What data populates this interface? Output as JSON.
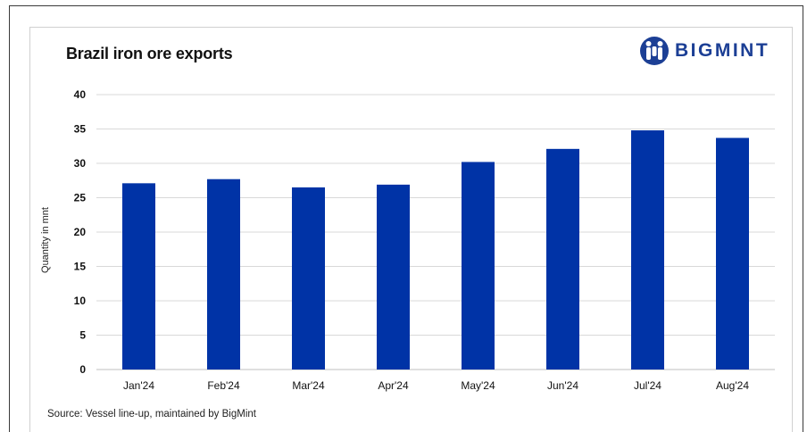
{
  "title": "Brazil iron ore exports",
  "logo_text": "BIGMINT",
  "logo_icon": "bigmint-people-icon",
  "source_text": "Source: Vessel line-up, maintained by BigMint",
  "colors": {
    "bar": "#0033a6",
    "logo": "#1c3f95",
    "grid": "#d9d9d9"
  },
  "chart_data": {
    "type": "bar",
    "title": "Brazil iron ore exports",
    "xlabel": "",
    "ylabel": "Quantity in mnt",
    "categories": [
      "Jan'24",
      "Feb'24",
      "Mar'24",
      "Apr'24",
      "May'24",
      "Jun'24",
      "Jul'24",
      "Aug'24"
    ],
    "values": [
      27.1,
      27.7,
      26.5,
      26.9,
      30.2,
      32.1,
      34.8,
      33.7
    ],
    "ylim": [
      0,
      40
    ],
    "yticks": [
      0,
      5,
      10,
      15,
      20,
      25,
      30,
      35,
      40
    ],
    "grid": true,
    "legend": "none"
  }
}
